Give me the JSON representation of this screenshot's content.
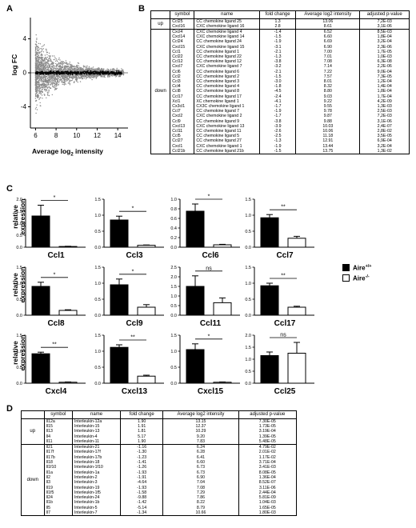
{
  "panelA": {
    "letter": "A",
    "ylabel": "log FC",
    "xlabel_prefix": "Average log",
    "xlabel_sub": "2",
    "xlabel_suffix": " intensity",
    "yticks": [
      "4",
      "0",
      "-4"
    ],
    "xticks": [
      "6",
      "8",
      "10",
      "12",
      "14"
    ]
  },
  "panelB": {
    "letter": "B",
    "headers": [
      "symbol",
      "name",
      "fold change",
      "Average log2 intensity",
      "adjusted p-value"
    ],
    "groups": [
      {
        "label": "up",
        "rows": [
          [
            "Ccl25",
            "CC chemokine ligand 25",
            "1.3",
            "13.06",
            "7,2E-03"
          ],
          [
            "Cxcl16",
            "CXC chemokine ligand 16",
            "2.8",
            "8.61",
            "3,1E-06"
          ]
        ]
      },
      {
        "label": "down",
        "rows": [
          [
            "Cxcl4",
            "CXC chemokine ligand 4",
            "-1.4",
            "6.52",
            "8,5E-03"
          ],
          [
            "Cxcl14",
            "CXC chemokine ligand 14",
            "-1.5",
            "6.60",
            "1,8E-04"
          ],
          [
            "Ccl24",
            "CC chemokine ligand 24",
            "-1.9",
            "6.69",
            "3,2E-04"
          ],
          [
            "Cxcl15",
            "CXC chemokine ligand 15",
            "-3.1",
            "6.90",
            "2,3E-06"
          ],
          [
            "Ccl1",
            "CC chemokine ligand 1",
            "-2.1",
            "7.00",
            "1,7E-05"
          ],
          [
            "Ccl22",
            "CC chemokine ligand 22",
            "-1.3",
            "7.01",
            "1,0E-03"
          ],
          [
            "Ccl12",
            "CC chemokine ligand 12",
            "-3.8",
            "7.08",
            "6,3E-08"
          ],
          [
            "Cxcl7",
            "CXC chemokine ligand 7",
            "-3.2",
            "7.14",
            "2,2E-06"
          ],
          [
            "Ccl6",
            "CC chemokine ligand 6",
            "-2.1",
            "7.22",
            "9,0E-04"
          ],
          [
            "Ccl2",
            "CC chemokine ligand 2",
            "-1.5",
            "7.57",
            "7,3E-05"
          ],
          [
            "Ccl3",
            "CC chemokine ligand 3",
            "-3.0",
            "8.01",
            "1,2E-04"
          ],
          [
            "Ccl4",
            "CC chemokine ligand 4",
            "-1.8",
            "8.32",
            "1,4E-04"
          ],
          [
            "Ccl8",
            "CC chemokine ligand 8",
            "-4.5",
            "8.80",
            "1,8E-04"
          ],
          [
            "Ccl17",
            "CC chemokine ligand 17",
            "-2.4",
            "9.03",
            "1,7E-04"
          ],
          [
            "Xcl1",
            "XC chemokine ligand 1",
            "-4.1",
            "9.22",
            "4,2E-09"
          ],
          [
            "Cx3cl1",
            "CX3C chemokine ligand 1",
            "-1.7",
            "9.55",
            "1,3E-03"
          ],
          [
            "Ccl7",
            "CC chemokine ligand 7",
            "-1.9",
            "9.78",
            "2,5E-03"
          ],
          [
            "Cxcl2",
            "CXC chemokine ligand 2",
            "-1.7",
            "9.87",
            "7,2E-03"
          ],
          [
            "Ccl9",
            "CC chemokine ligand 9",
            "-3.8",
            "9.88",
            "3,1E-06"
          ],
          [
            "Cxcl13",
            "CXC chemokine ligand 13",
            "-3.9",
            "10.03",
            "2,4E-07"
          ],
          [
            "Ccl11",
            "CC chemokine ligand 11",
            "-2.6",
            "10.06",
            "2,8E-02"
          ],
          [
            "Ccl5",
            "CC chemokine ligand 5",
            "-2.5",
            "11.18",
            "3,5E-05"
          ],
          [
            "Ccl27",
            "CC chemokine ligand 27",
            "-1.3",
            "12.91",
            "6,9E-04"
          ],
          [
            "Cxcl1",
            "CXC chemokine ligand 1",
            "-1.9",
            "13.44",
            "3,2E-04"
          ],
          [
            "Ccl21b",
            "CC chemokine ligand 21b",
            "-1.5",
            "13.75",
            "1,3E-02"
          ]
        ]
      }
    ]
  },
  "panelC": {
    "letter": "C",
    "ylabel_line1": "relative",
    "ylabel_line2": "expression",
    "legend": [
      {
        "label": "Aire",
        "sup": "+/+",
        "color": "#000000"
      },
      {
        "label": "Aire",
        "sup": "-/-",
        "color": "#ffffff"
      }
    ]
  },
  "chart_data": [
    {
      "type": "bar",
      "title": "Ccl1",
      "categories": [
        "Aire+/+",
        "Aire-/-"
      ],
      "values": [
        1.3,
        0.03
      ],
      "errors": [
        0.45,
        0.01
      ],
      "ylim": [
        0,
        2.0
      ],
      "yticks": [
        "0.0",
        "0.5",
        "1.0",
        "1.5",
        "2.0"
      ],
      "significance": "*"
    },
    {
      "type": "bar",
      "title": "Ccl3",
      "categories": [
        "Aire+/+",
        "Aire-/-"
      ],
      "values": [
        0.85,
        0.06
      ],
      "errors": [
        0.12,
        0.01
      ],
      "ylim": [
        0,
        1.5
      ],
      "yticks": [
        "0.0",
        "0.5",
        "1.0",
        "1.5"
      ],
      "significance": "*"
    },
    {
      "type": "bar",
      "title": "Ccl6",
      "categories": [
        "Aire+/+",
        "Aire-/-"
      ],
      "values": [
        0.75,
        0.05
      ],
      "errors": [
        0.15,
        0.01
      ],
      "ylim": [
        0,
        1.0
      ],
      "yticks": [
        "0.0",
        "0.2",
        "0.4",
        "0.6",
        "0.8",
        "1.0"
      ],
      "significance": "*"
    },
    {
      "type": "bar",
      "title": "Ccl7",
      "categories": [
        "Aire+/+",
        "Aire-/-"
      ],
      "values": [
        0.92,
        0.28
      ],
      "errors": [
        0.1,
        0.06
      ],
      "ylim": [
        0,
        1.5
      ],
      "yticks": [
        "0.0",
        "0.5",
        "1.0",
        "1.5"
      ],
      "significance": "**"
    },
    {
      "type": "bar",
      "title": "Ccl8",
      "categories": [
        "Aire+/+",
        "Aire-/-"
      ],
      "values": [
        0.9,
        0.15
      ],
      "errors": [
        0.13,
        0.02
      ],
      "ylim": [
        0,
        1.5
      ],
      "yticks": [
        "0.0",
        "0.5",
        "1.0",
        "1.5"
      ],
      "significance": "*"
    },
    {
      "type": "bar",
      "title": "Ccl9",
      "categories": [
        "Aire+/+",
        "Aire-/-"
      ],
      "values": [
        0.95,
        0.25
      ],
      "errors": [
        0.18,
        0.08
      ],
      "ylim": [
        0,
        1.5
      ],
      "yticks": [
        "0.0",
        "0.5",
        "1.0",
        "1.5"
      ],
      "significance": "*"
    },
    {
      "type": "bar",
      "title": "Ccl11",
      "categories": [
        "Aire+/+",
        "Aire-/-"
      ],
      "values": [
        1.5,
        0.65
      ],
      "errors": [
        0.55,
        0.25
      ],
      "ylim": [
        0,
        2.5
      ],
      "yticks": [
        "0.0",
        "0.5",
        "1.0",
        "1.5",
        "2.0",
        "2.5"
      ],
      "significance": "ns"
    },
    {
      "type": "bar",
      "title": "Ccl17",
      "categories": [
        "Aire+/+",
        "Aire-/-"
      ],
      "values": [
        0.92,
        0.25
      ],
      "errors": [
        0.08,
        0.03
      ],
      "ylim": [
        0,
        1.5
      ],
      "yticks": [
        "0.0",
        "0.5",
        "1.0",
        "1.5"
      ],
      "significance": "**"
    },
    {
      "type": "bar",
      "title": "Cxcl4",
      "categories": [
        "Aire+/+",
        "Aire-/-"
      ],
      "values": [
        0.92,
        0.03
      ],
      "errors": [
        0.05,
        0.01
      ],
      "ylim": [
        0,
        1.5
      ],
      "yticks": [
        "0.0",
        "0.5",
        "1.0",
        "1.5"
      ],
      "significance": "**"
    },
    {
      "type": "bar",
      "title": "Cxcl13",
      "categories": [
        "Aire+/+",
        "Aire-/-"
      ],
      "values": [
        1.12,
        0.22
      ],
      "errors": [
        0.08,
        0.03
      ],
      "ylim": [
        0,
        1.5
      ],
      "yticks": [
        "0.0",
        "0.5",
        "1.0",
        "1.5"
      ],
      "significance": "**"
    },
    {
      "type": "bar",
      "title": "Cxcl15",
      "categories": [
        "Aire+/+",
        "Aire-/-"
      ],
      "values": [
        1.05,
        0.03
      ],
      "errors": [
        0.18,
        0.01
      ],
      "ylim": [
        0,
        1.5
      ],
      "yticks": [
        "0.0",
        "0.5",
        "1.0",
        "1.5"
      ],
      "significance": "*"
    },
    {
      "type": "bar",
      "title": "Ccl25",
      "categories": [
        "Aire+/+",
        "Aire-/-"
      ],
      "values": [
        1.15,
        1.25
      ],
      "errors": [
        0.15,
        0.45
      ],
      "ylim": [
        0,
        2.0
      ],
      "yticks": [
        "0.0",
        "0.5",
        "1.0",
        "1.5",
        "2.0"
      ],
      "significance": "ns"
    }
  ],
  "panelD": {
    "letter": "D",
    "headers": [
      "symbol",
      "name",
      "fold change",
      "Average log2 intensity",
      "adjusted p-value"
    ],
    "groups": [
      {
        "label": "up",
        "rows": [
          [
            "Il12a",
            "Interleukin-12a",
            "1.90",
            "13.15",
            "7.30E-05"
          ],
          [
            "Il15",
            "Interleukin-15",
            "1.91",
            "12.37",
            "1.73E-05"
          ],
          [
            "Il13",
            "Interleukin-13",
            "1.81",
            "10.29",
            "3.19E-04"
          ],
          [
            "Il4",
            "Interleukin-4",
            "5.17",
            "9.20",
            "1.39E-05"
          ],
          [
            "Il11",
            "Interleukin-11",
            "1.90",
            "7.83",
            "5.48E-05"
          ]
        ]
      },
      {
        "label": "down",
        "rows": [
          [
            "Il21",
            "Interleukin-21",
            "-1.16",
            "6.24",
            "4.79E-02"
          ],
          [
            "Il17f",
            "Interleukin-17f",
            "-1.30",
            "6.28",
            "2.01E-02"
          ],
          [
            "Il17b",
            "Interleukin-17b",
            "-1.23",
            "6.41",
            "1.17E-02"
          ],
          [
            "Il18",
            "Interleukin-18",
            "-1.41",
            "6.60",
            "3.71E-04"
          ],
          [
            "Il1f10",
            "Interleukin-1f10",
            "-1.26",
            "6.73",
            "3.41E-03"
          ],
          [
            "Il1a",
            "Interleukin-1a",
            "-1.93",
            "6.73",
            "8.08E-05"
          ],
          [
            "Il2",
            "Interleukin-2",
            "-1.91",
            "6.90",
            "1.36E-04"
          ],
          [
            "Il3",
            "Interleukin-3",
            "-4.64",
            "7.04",
            "8.52E-07"
          ],
          [
            "Il19",
            "Interleukin-19",
            "-1.93",
            "7.08",
            "3.11E-06"
          ],
          [
            "Il1f5",
            "Interleukin-1f5",
            "-1.58",
            "7.29",
            "2.44E-04"
          ],
          [
            "Il24",
            "Interleukin-24",
            "-9.88",
            "7.86",
            "5.81E-09"
          ],
          [
            "Il1b",
            "Interleukin-1b",
            "-1.42",
            "8.22",
            "1.04E-03"
          ],
          [
            "Il5",
            "Interleukin-5",
            "-5.14",
            "8.79",
            "1.65E-05"
          ],
          [
            "Il7",
            "Interleukin-7",
            "-1.34",
            "10.66",
            "1.80E-03"
          ]
        ]
      }
    ]
  }
}
